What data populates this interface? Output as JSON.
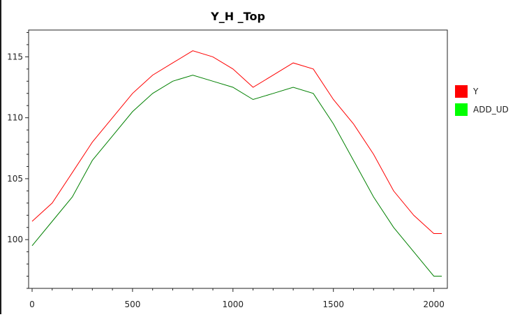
{
  "chart_data": {
    "type": "line",
    "title": "Y_H _Top",
    "xlabel": "",
    "ylabel": "",
    "xlim": [
      0,
      2050
    ],
    "ylim": [
      96,
      117.2
    ],
    "xticks": [
      0,
      500,
      1000,
      1500,
      2000
    ],
    "yticks": [
      100,
      105,
      110,
      115
    ],
    "grid": false,
    "legend_position": "right",
    "series": [
      {
        "name": "Y",
        "color": "#ff0000",
        "x": [
          0,
          100,
          200,
          300,
          400,
          500,
          600,
          700,
          800,
          900,
          1000,
          1100,
          1200,
          1300,
          1400,
          1500,
          1600,
          1700,
          1800,
          1900,
          2000,
          2040
        ],
        "y": [
          101.5,
          103,
          105.5,
          108,
          110,
          112,
          113.5,
          114.5,
          115.5,
          115,
          114,
          112.5,
          113.5,
          114.5,
          114,
          111.5,
          109.5,
          107,
          104,
          102,
          100.5,
          100.5
        ]
      },
      {
        "name": "ADD_UD",
        "color": "#00ff00",
        "line_color": "#008000",
        "x": [
          0,
          100,
          200,
          300,
          400,
          500,
          600,
          700,
          800,
          900,
          1000,
          1100,
          1200,
          1300,
          1400,
          1500,
          1600,
          1700,
          1800,
          1900,
          2000,
          2040
        ],
        "y": [
          99.5,
          101.5,
          103.5,
          106.5,
          108.5,
          110.5,
          112,
          113,
          113.5,
          113,
          112.5,
          111.5,
          112,
          112.5,
          112,
          109.5,
          106.5,
          103.5,
          101,
          99,
          97,
          97
        ]
      }
    ]
  }
}
